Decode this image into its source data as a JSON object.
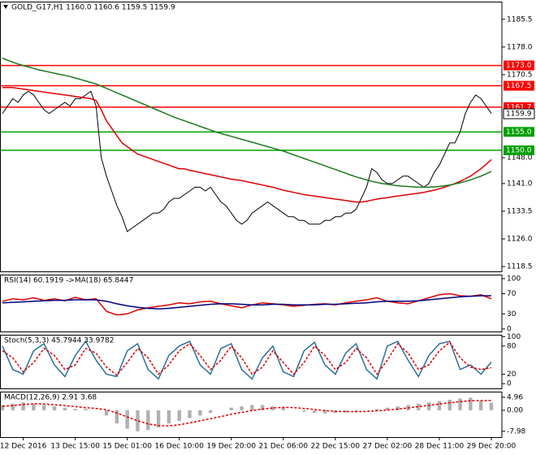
{
  "chart_data": [
    {
      "type": "line",
      "title": "GOLD_G17,H1 1160.0 1160.6 1159.5 1159.9",
      "categories": [
        null,
        null,
        null,
        null,
        "12 Dec 2016",
        null,
        null,
        null,
        null,
        null,
        null,
        null,
        null,
        null,
        "13 Dec 15:00",
        null,
        null,
        null,
        null,
        null,
        null,
        null,
        null,
        null,
        "15 Dec 01:00",
        null,
        null,
        null,
        null,
        null,
        null,
        null,
        null,
        null,
        "16 Dec 10:00",
        null,
        null,
        null,
        null,
        null,
        null,
        null,
        null,
        null,
        "19 Dec 20:00",
        null,
        null,
        null,
        null,
        null,
        null,
        null,
        null,
        null,
        "21 Dec 06:00",
        null,
        null,
        null,
        null,
        null,
        null,
        null,
        null,
        null,
        "22 Dec 15:00",
        null,
        null,
        null,
        null,
        null,
        null,
        null,
        null,
        null,
        "27 Dec 02:00",
        null,
        null,
        null,
        null,
        null,
        null,
        null,
        null,
        null,
        "28 Dec 11:00",
        null,
        null,
        null,
        null,
        null,
        null,
        null,
        null,
        null,
        "29 Dec 20:00"
      ],
      "series": [
        {
          "color": "#000000",
          "values": [
            1160,
            1162,
            1164,
            1163,
            1165,
            1166,
            1165,
            1163,
            1161,
            1160,
            1161,
            1162,
            1163,
            1162,
            1164,
            1164,
            1165,
            1166,
            1162,
            1148,
            1143,
            1139,
            1135,
            1132,
            1128,
            1129,
            1130,
            1131,
            1132,
            1133,
            1133,
            1134,
            1136,
            1137,
            1137,
            1138,
            1139,
            1140,
            1140,
            1139,
            1140,
            1138,
            1136,
            1135,
            1133,
            1131,
            1130,
            1131,
            1133,
            1134,
            1135,
            1136,
            1135,
            1134,
            1133,
            1132,
            1132,
            1131,
            1131,
            1130,
            1130,
            1130,
            1131,
            1131,
            1132,
            1132,
            1133,
            1133,
            1134,
            1137,
            1140,
            1145,
            1144,
            1142,
            1141,
            1141,
            1142,
            1143,
            1143,
            1142,
            1141,
            1140,
            1141,
            1144,
            1146,
            1149,
            1152,
            1152,
            1155,
            1160,
            1163,
            1165,
            1164,
            1162,
            1160
          ]
        },
        {
          "color": "#e00000",
          "values": [
            1167,
            1167,
            1167,
            1166.8,
            1166.6,
            1166.4,
            1166.2,
            1166,
            1165.8,
            1165.6,
            1165.4,
            1165.2,
            1165,
            1164.8,
            1164.6,
            1164.4,
            1164.2,
            1164,
            1163.5,
            1161,
            1158,
            1156,
            1154,
            1152,
            1151,
            1150,
            1149,
            1148.5,
            1148,
            1147.5,
            1147,
            1146.5,
            1146,
            1145.5,
            1145,
            1145,
            1144.6,
            1144.3,
            1144,
            1143.7,
            1143.4,
            1143.1,
            1142.8,
            1142.5,
            1142.2,
            1142,
            1141.8,
            1141.5,
            1141.2,
            1140.9,
            1140.6,
            1140.3,
            1140,
            1139.6,
            1139.2,
            1138.9,
            1138.6,
            1138.3,
            1138,
            1137.8,
            1137.6,
            1137.4,
            1137.2,
            1137,
            1136.8,
            1136.6,
            1136.4,
            1136.2,
            1136,
            1136,
            1136.2,
            1136.5,
            1136.8,
            1137,
            1137.2,
            1137.4,
            1137.6,
            1137.8,
            1138,
            1138.2,
            1138.4,
            1138.6,
            1138.9,
            1139.2,
            1139.6,
            1140,
            1140.5,
            1141,
            1141.6,
            1142.3,
            1143,
            1144,
            1145,
            1146.2,
            1147.5
          ]
        },
        {
          "color": "#1a7a1a",
          "values": [
            1175,
            1174.4,
            1173.9,
            1173.4,
            1173,
            1172.6,
            1172.2,
            1171.8,
            1171.5,
            1171.2,
            1170.9,
            1170.6,
            1170.3,
            1170,
            1169.6,
            1169.2,
            1168.8,
            1168.4,
            1168,
            1167.4,
            1166.8,
            1166.2,
            1165.6,
            1165,
            1164.4,
            1163.8,
            1163.2,
            1162.6,
            1162,
            1161.4,
            1160.8,
            1160.2,
            1159.6,
            1159,
            1158.5,
            1158,
            1157.5,
            1157,
            1156.5,
            1156,
            1155.5,
            1155,
            1154.6,
            1154.2,
            1153.8,
            1153.4,
            1153,
            1152.6,
            1152.2,
            1151.8,
            1151.4,
            1151,
            1150.6,
            1150.2,
            1149.8,
            1149.3,
            1148.8,
            1148.3,
            1147.8,
            1147.3,
            1146.8,
            1146.3,
            1145.8,
            1145.3,
            1144.8,
            1144.3,
            1143.8,
            1143.3,
            1142.8,
            1142.4,
            1142,
            1141.6,
            1141.3,
            1141,
            1140.8,
            1140.6,
            1140.4,
            1140.3,
            1140.2,
            1140.1,
            1140,
            1140,
            1140,
            1140.1,
            1140.2,
            1140.4,
            1140.6,
            1140.9,
            1141.2,
            1141.6,
            1142,
            1142.5,
            1143,
            1143.6,
            1144.3
          ]
        }
      ],
      "levels": [
        {
          "value": 1173.0,
          "label": "1173.0",
          "color": "#ff0000"
        },
        {
          "value": 1167.5,
          "label": "1167.5",
          "color": "#ff0000"
        },
        {
          "value": 1161.7,
          "label": "1161.7",
          "color": "#ff0000"
        },
        {
          "value": 1155.0,
          "label": "1155.0",
          "color": "#00a000"
        },
        {
          "value": 1150.0,
          "label": "1150.0",
          "color": "#00a000"
        }
      ],
      "last": {
        "value": 1159.9,
        "label": "1159.9"
      },
      "ylim": [
        1117.2,
        1190.3
      ],
      "yticks": [
        1185.5,
        {
          "value": 1178,
          "label": "1178.0"
        },
        1170.5,
        {
          "value": 1148,
          "label": "1148.0"
        },
        {
          "value": 1141,
          "label": "1141.0"
        },
        1133.5,
        {
          "value": 1126,
          "label": "1126.0"
        },
        1118.5
      ]
    },
    {
      "type": "line",
      "title": "RSI(14) 60.1919 ->MA(18) 65.8447",
      "series": [
        {
          "color": "#e00000",
          "values": [
            55,
            60,
            58,
            62,
            57,
            60,
            56,
            63,
            58,
            60,
            35,
            28,
            30,
            38,
            42,
            45,
            48,
            52,
            50,
            54,
            55,
            50,
            46,
            42,
            48,
            52,
            50,
            48,
            45,
            47,
            49,
            50,
            48,
            52,
            55,
            58,
            62,
            55,
            52,
            50,
            56,
            62,
            68,
            70,
            66,
            65,
            68,
            60
          ]
        },
        {
          "color": "#000080",
          "values": [
            52,
            53,
            54,
            55,
            56,
            57,
            57,
            58,
            58,
            58,
            55,
            50,
            46,
            43,
            41,
            40,
            41,
            43,
            45,
            47,
            49,
            50,
            50,
            49,
            48,
            48,
            49,
            49,
            48,
            48,
            48,
            49,
            49,
            50,
            51,
            52,
            54,
            55,
            55,
            55,
            56,
            58,
            60,
            62,
            64,
            65,
            66,
            66
          ]
        }
      ],
      "ylim": [
        -5,
        108
      ],
      "yticks": [
        100,
        70,
        30,
        0
      ]
    },
    {
      "type": "line",
      "title": "Stoch(5,3,3) 45.7944 33.9782",
      "series": [
        {
          "color": "#2a6f9a",
          "values": [
            80,
            30,
            20,
            70,
            85,
            40,
            15,
            60,
            90,
            50,
            20,
            15,
            70,
            85,
            30,
            10,
            60,
            80,
            90,
            40,
            20,
            75,
            85,
            30,
            10,
            55,
            80,
            25,
            15,
            70,
            88,
            40,
            20,
            65,
            85,
            30,
            10,
            80,
            90,
            50,
            15,
            60,
            85,
            90,
            30,
            40,
            20,
            46
          ]
        },
        {
          "color": "#e00000",
          "dash": true,
          "values": [
            70,
            55,
            25,
            45,
            75,
            60,
            30,
            40,
            75,
            65,
            35,
            18,
            45,
            75,
            55,
            20,
            40,
            70,
            85,
            60,
            30,
            50,
            80,
            55,
            20,
            35,
            70,
            45,
            20,
            45,
            80,
            60,
            30,
            45,
            75,
            55,
            20,
            50,
            85,
            65,
            30,
            40,
            70,
            88,
            55,
            35,
            30,
            34
          ]
        }
      ],
      "ylim": [
        -10,
        104
      ],
      "yticks": [
        100,
        80,
        20,
        0
      ]
    },
    {
      "type": "line",
      "title": "MACD(12,26,9) 2.91 3.68",
      "series": [
        {
          "type": "bar",
          "color": "#b0b0b0",
          "values": [
            2,
            2.5,
            3,
            2.5,
            2,
            1.5,
            1,
            0.5,
            0.5,
            0,
            -2,
            -5,
            -7,
            -8,
            -7.5,
            -6.5,
            -5,
            -4,
            -3,
            -2,
            -1,
            0,
            1,
            1.5,
            2,
            2,
            1.5,
            1,
            0,
            -0.5,
            -1,
            -1.2,
            -1,
            -0.8,
            -0.5,
            0,
            0.5,
            1,
            1.5,
            2,
            2.5,
            3,
            3.5,
            4,
            4.5,
            4.8,
            3.5,
            2.9
          ]
        },
        {
          "color": "#e00000",
          "dash": true,
          "values": [
            1.5,
            1.8,
            2.2,
            2.5,
            2.4,
            2.1,
            1.8,
            1.4,
            1,
            0.7,
            0.2,
            -1,
            -2.5,
            -4,
            -5.2,
            -5.8,
            -5.9,
            -5.5,
            -4.8,
            -4,
            -3.2,
            -2.4,
            -1.5,
            -0.8,
            -0.1,
            0.5,
            0.9,
            1.1,
            1,
            0.7,
            0.3,
            -0.1,
            -0.4,
            -0.5,
            -0.5,
            -0.4,
            -0.2,
            0.1,
            0.5,
            0.9,
            1.4,
            1.9,
            2.4,
            2.9,
            3.3,
            3.6,
            3.7,
            3.7
          ]
        }
      ],
      "ylim": [
        -10.2,
        7.1
      ],
      "yticks": [
        4.96,
        {
          "value": 0,
          "label": "0.00"
        },
        -7.98
      ]
    }
  ]
}
